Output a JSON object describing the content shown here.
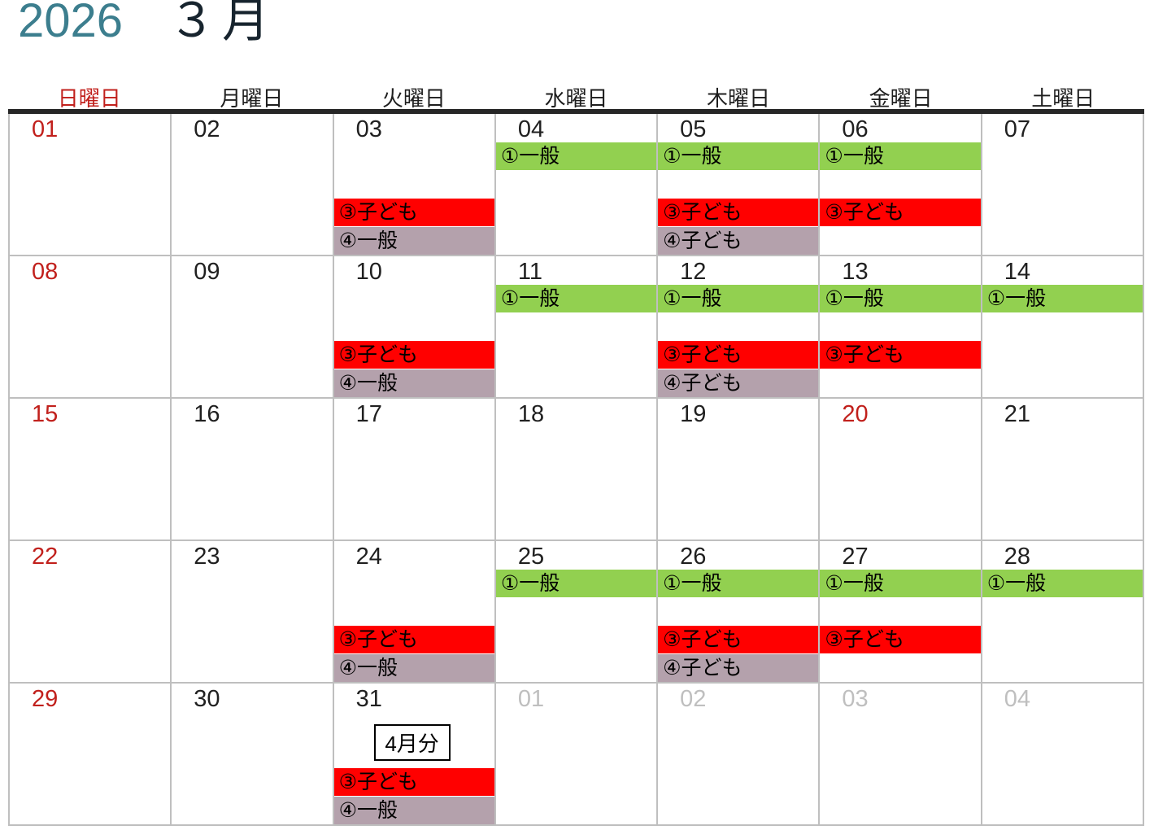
{
  "title": {
    "year": "2026",
    "month": "３月"
  },
  "colors": {
    "accent_year": "#3C7E8E",
    "accent_month": "#17242E",
    "holiday_red": "#C1201C",
    "next_month_gray": "#BFBFBF",
    "event_green": "#92D050",
    "event_red": "#FF0000",
    "event_gray": "#B4A1AC",
    "grid_line": "#BFBFBF",
    "header_rule": "#262626"
  },
  "day_headers": [
    {
      "label": "日曜日",
      "emphasis": "red"
    },
    {
      "label": "月曜日",
      "emphasis": "normal"
    },
    {
      "label": "火曜日",
      "emphasis": "normal"
    },
    {
      "label": "水曜日",
      "emphasis": "normal"
    },
    {
      "label": "木曜日",
      "emphasis": "normal"
    },
    {
      "label": "金曜日",
      "emphasis": "normal"
    },
    {
      "label": "土曜日",
      "emphasis": "normal"
    }
  ],
  "weeks": [
    {
      "days": [
        {
          "date": "01",
          "tone": "red",
          "events": []
        },
        {
          "date": "02",
          "tone": "normal",
          "events": []
        },
        {
          "date": "03",
          "tone": "normal",
          "events": [
            {
              "slot": "red",
              "label": "③子ども"
            },
            {
              "slot": "gray",
              "label": "④一般"
            }
          ]
        },
        {
          "date": "04",
          "tone": "normal",
          "events": [
            {
              "slot": "green",
              "label": "①一般"
            }
          ]
        },
        {
          "date": "05",
          "tone": "normal",
          "events": [
            {
              "slot": "green",
              "label": "①一般"
            },
            {
              "slot": "red",
              "label": "③子ども"
            },
            {
              "slot": "gray",
              "label": "④子ども"
            }
          ]
        },
        {
          "date": "06",
          "tone": "normal",
          "events": [
            {
              "slot": "green",
              "label": "①一般"
            },
            {
              "slot": "red",
              "label": "③子ども"
            }
          ]
        },
        {
          "date": "07",
          "tone": "normal",
          "events": []
        }
      ]
    },
    {
      "days": [
        {
          "date": "08",
          "tone": "red",
          "events": []
        },
        {
          "date": "09",
          "tone": "normal",
          "events": []
        },
        {
          "date": "10",
          "tone": "normal",
          "events": [
            {
              "slot": "red",
              "label": "③子ども"
            },
            {
              "slot": "gray",
              "label": "④一般"
            }
          ]
        },
        {
          "date": "11",
          "tone": "normal",
          "events": [
            {
              "slot": "green",
              "label": "①一般"
            }
          ]
        },
        {
          "date": "12",
          "tone": "normal",
          "events": [
            {
              "slot": "green",
              "label": "①一般"
            },
            {
              "slot": "red",
              "label": "③子ども"
            },
            {
              "slot": "gray",
              "label": "④子ども"
            }
          ]
        },
        {
          "date": "13",
          "tone": "normal",
          "events": [
            {
              "slot": "green",
              "label": "①一般"
            },
            {
              "slot": "red",
              "label": "③子ども"
            }
          ]
        },
        {
          "date": "14",
          "tone": "normal",
          "events": [
            {
              "slot": "green",
              "label": "①一般"
            }
          ]
        }
      ]
    },
    {
      "days": [
        {
          "date": "15",
          "tone": "red",
          "events": []
        },
        {
          "date": "16",
          "tone": "normal",
          "events": []
        },
        {
          "date": "17",
          "tone": "normal",
          "events": []
        },
        {
          "date": "18",
          "tone": "normal",
          "events": []
        },
        {
          "date": "19",
          "tone": "normal",
          "events": []
        },
        {
          "date": "20",
          "tone": "red",
          "events": []
        },
        {
          "date": "21",
          "tone": "normal",
          "events": []
        }
      ]
    },
    {
      "days": [
        {
          "date": "22",
          "tone": "red",
          "events": []
        },
        {
          "date": "23",
          "tone": "normal",
          "events": []
        },
        {
          "date": "24",
          "tone": "normal",
          "events": [
            {
              "slot": "red",
              "label": "③子ども"
            },
            {
              "slot": "gray",
              "label": "④一般"
            }
          ]
        },
        {
          "date": "25",
          "tone": "normal",
          "events": [
            {
              "slot": "green",
              "label": "①一般"
            }
          ]
        },
        {
          "date": "26",
          "tone": "normal",
          "events": [
            {
              "slot": "green",
              "label": "①一般"
            },
            {
              "slot": "red",
              "label": "③子ども"
            },
            {
              "slot": "gray",
              "label": "④子ども"
            }
          ]
        },
        {
          "date": "27",
          "tone": "normal",
          "events": [
            {
              "slot": "green",
              "label": "①一般"
            },
            {
              "slot": "red",
              "label": "③子ども"
            }
          ]
        },
        {
          "date": "28",
          "tone": "normal",
          "events": [
            {
              "slot": "green",
              "label": "①一般"
            }
          ]
        }
      ]
    },
    {
      "days": [
        {
          "date": "29",
          "tone": "red",
          "events": []
        },
        {
          "date": "30",
          "tone": "normal",
          "events": []
        },
        {
          "date": "31",
          "tone": "normal",
          "note": "4月分",
          "events": [
            {
              "slot": "red",
              "label": "③子ども"
            },
            {
              "slot": "gray",
              "label": "④一般"
            }
          ]
        },
        {
          "date": "01",
          "tone": "muted",
          "events": []
        },
        {
          "date": "02",
          "tone": "muted",
          "events": []
        },
        {
          "date": "03",
          "tone": "muted",
          "events": []
        },
        {
          "date": "04",
          "tone": "muted",
          "events": []
        }
      ]
    }
  ]
}
